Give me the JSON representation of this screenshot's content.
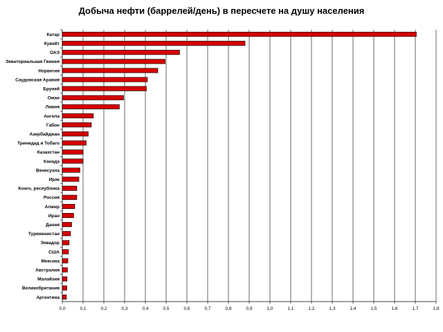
{
  "chart_data": {
    "type": "bar",
    "orientation": "horizontal",
    "title": "Добыча нефти (баррелей/день) в пересчете на душу населения",
    "xlabel": "",
    "ylabel": "",
    "xlim": [
      0,
      1.8
    ],
    "grid": true,
    "legend": "none",
    "bar_color": "#d40000",
    "categories": [
      "Катар",
      "Кувейт",
      "ОАЭ",
      "Экваториальная Гвинея",
      "Норвегия",
      "Саудовская Аравия",
      "Бруней",
      "Оман",
      "Ливия",
      "Ангола",
      "Габон",
      "Азербайджан",
      "Тринидад и Тобаго",
      "Казахстан",
      "Канада",
      "Венесуэла",
      "Ирак",
      "Конго, республика",
      "Россия",
      "Алжир",
      "Иран",
      "Дания",
      "Туркменистан",
      "Эквадор",
      "США",
      "Мексика",
      "Австралия",
      "Малайзия",
      "Великобритания",
      "Аргентина"
    ],
    "values": [
      1.705,
      0.88,
      0.565,
      0.495,
      0.46,
      0.41,
      0.405,
      0.295,
      0.275,
      0.15,
      0.14,
      0.125,
      0.115,
      0.1,
      0.1,
      0.085,
      0.08,
      0.07,
      0.07,
      0.06,
      0.055,
      0.045,
      0.04,
      0.033,
      0.03,
      0.027,
      0.025,
      0.023,
      0.022,
      0.02
    ],
    "ticks": [
      "0,0",
      "0,1",
      "0,2",
      "0,3",
      "0,4",
      "0,5",
      "0,6",
      "0,7",
      "0,8",
      "0,9",
      "1,0",
      "1,1",
      "1,2",
      "1,3",
      "1,4",
      "1,5",
      "1,6",
      "1,7",
      "1,8"
    ]
  }
}
